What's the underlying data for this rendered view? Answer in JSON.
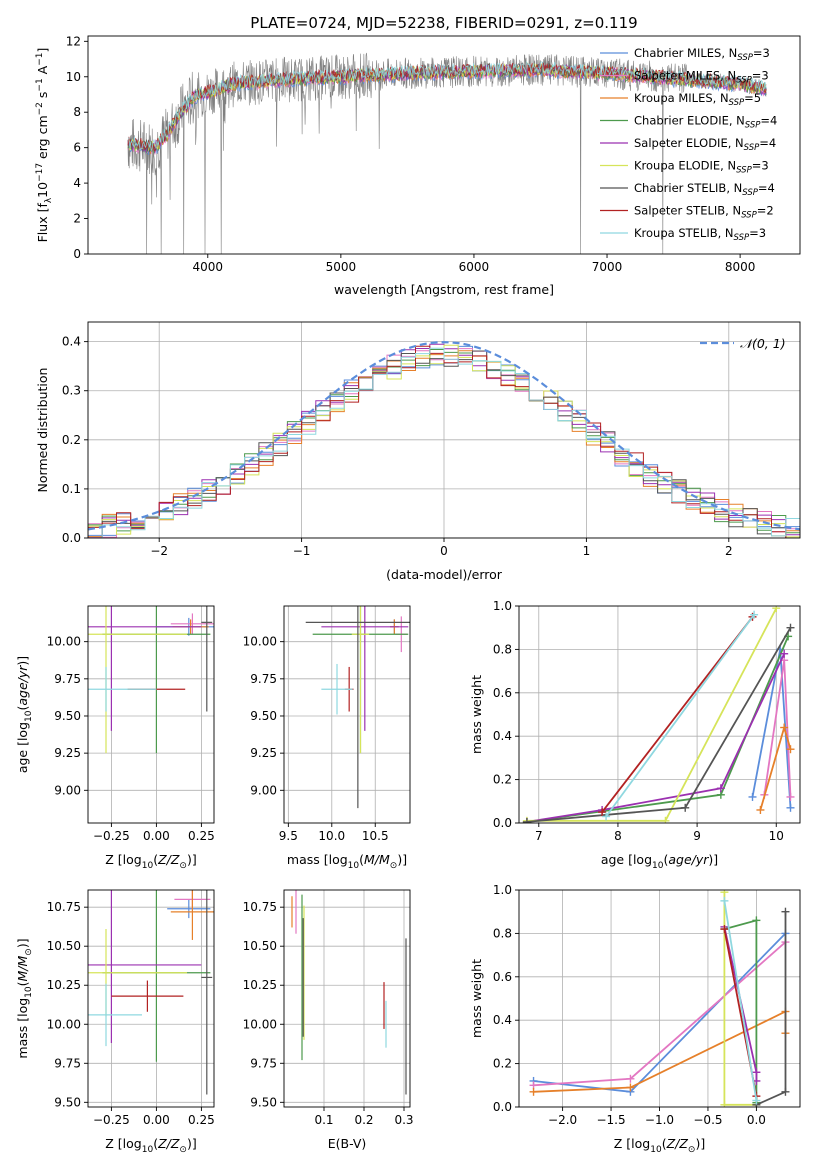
{
  "figure_title": "PLATE=0724, MJD=52238, FIBERID=0291, z=0.119",
  "legend": [
    {
      "label": "Chabrier MILES, N$_{SSP}$=3",
      "main": "Chabrier MILES, N",
      "sub": "SSP",
      "tail": "=3",
      "color": "#5b8ddb"
    },
    {
      "label": "Salpeter MILES, N$_{SSP}$=3",
      "main": "Salpeter MILES, N",
      "sub": "SSP",
      "tail": "=3",
      "color": "#e377c2"
    },
    {
      "label": "Kroupa MILES, N$_{SSP}$=5",
      "main": "Kroupa MILES, N",
      "sub": "SSP",
      "tail": "=5",
      "color": "#e6802a"
    },
    {
      "label": "Chabrier ELODIE, N$_{SSP}$=4",
      "main": "Chabrier ELODIE, N",
      "sub": "SSP",
      "tail": "=4",
      "color": "#4d9a4d"
    },
    {
      "label": "Salpeter ELODIE, N$_{SSP}$=4",
      "main": "Salpeter ELODIE, N",
      "sub": "SSP",
      "tail": "=4",
      "color": "#9b30b0"
    },
    {
      "label": "Kroupa ELODIE, N$_{SSP}$=3",
      "main": "Kroupa ELODIE, N",
      "sub": "SSP",
      "tail": "=3",
      "color": "#d6e45a"
    },
    {
      "label": "Chabrier STELIB, N$_{SSP}$=4",
      "main": "Chabrier STELIB, N",
      "sub": "SSP",
      "tail": "=4",
      "color": "#555555"
    },
    {
      "label": "Salpeter STELIB, N$_{SSP}$=2",
      "main": "Salpeter STELIB, N",
      "sub": "SSP",
      "tail": "=2",
      "color": "#b22222"
    },
    {
      "label": "Kroupa STELIB, N$_{SSP}$=3",
      "main": "Kroupa STELIB, N",
      "sub": "SSP",
      "tail": "=3",
      "color": "#8fd8e0"
    }
  ],
  "chart_data": [
    {
      "id": "spectrum",
      "type": "line",
      "xlabel": "wavelength [Angstrom, rest frame]",
      "ylabel": "Flux [f$_\\lambda$10$^{-17}$ erg cm$^{-2}$ s$^{-1}$ A$^{-1}$]",
      "ylabel_main": "Flux [f",
      "xlim": [
        3100,
        8450
      ],
      "ylim": [
        0,
        12.3
      ],
      "xticks": [
        4000,
        5000,
        6000,
        7000,
        8000
      ],
      "yticks": [
        0,
        2,
        4,
        6,
        8,
        10,
        12
      ],
      "grid": false,
      "legend_position": "right",
      "data_color": "#808080",
      "continuum": {
        "x": [
          3400,
          3600,
          3700,
          3800,
          3900,
          4000,
          4200,
          4500,
          5000,
          5500,
          6000,
          6500,
          7000,
          7500,
          8000,
          8200
        ],
        "y": [
          6.2,
          6.0,
          6.8,
          8.0,
          8.9,
          9.1,
          9.6,
          9.8,
          10.0,
          10.2,
          10.3,
          10.4,
          10.2,
          9.9,
          9.6,
          9.3
        ]
      },
      "observed_dropouts": [
        3540,
        3650,
        3820,
        3980,
        4100,
        6800,
        7420
      ]
    },
    {
      "id": "residuals",
      "type": "histogram",
      "xlabel": "(data-model)/error",
      "ylabel": "Normed distribution",
      "xlim": [
        -2.5,
        2.5
      ],
      "ylim": [
        0,
        0.44
      ],
      "xticks": [
        -2,
        -1,
        0,
        1,
        2
      ],
      "yticks": [
        0.0,
        0.1,
        0.2,
        0.3,
        0.4
      ],
      "grid": true,
      "legend": [
        {
          "label": "$\\mathcal{N}(0,1)$",
          "display": "𝒩(0, 1)",
          "color": "#5b8ddb",
          "style": "dashed"
        }
      ],
      "legend_position": "top-right",
      "bin_width": 0.1
    },
    {
      "id": "age-vs-Z",
      "type": "errorbar",
      "xlabel": "Z [log$_{10}$(Z/Z$_\\odot$)]",
      "ylabel": "age  [log$_{10}$(age/yr)]",
      "xlim": [
        -0.38,
        0.32
      ],
      "ylim": [
        8.78,
        10.24
      ],
      "xticks": [
        -0.25,
        0.0,
        0.25
      ],
      "xticklabels": [
        "−0.25",
        "0.00",
        "0.25"
      ],
      "yticks": [
        9.0,
        9.25,
        9.5,
        9.75,
        10.0
      ],
      "grid": true,
      "points": [
        {
          "x": 0.18,
          "y": 10.1,
          "xerr": 0.18,
          "yerr": 0.06,
          "color": "#5b8ddb"
        },
        {
          "x": 0.2,
          "y": 10.12,
          "xerr": 0.12,
          "yerr": 0.07,
          "color": "#e377c2"
        },
        {
          "x": 0.19,
          "y": 10.1,
          "xerr": 0.1,
          "yerr": 0.05,
          "color": "#e6802a"
        },
        {
          "x": 0.0,
          "y": 10.05,
          "xerr": 0.3,
          "yerr": 0.8,
          "color": "#4d9a4d"
        },
        {
          "x": -0.25,
          "y": 10.1,
          "xerr": 0.5,
          "yerr": 0.7,
          "color": "#9b30b0"
        },
        {
          "x": -0.28,
          "y": 10.05,
          "xerr": 0.45,
          "yerr": 0.8,
          "color": "#d6e45a"
        },
        {
          "x": 0.28,
          "y": 10.13,
          "xerr": 0.03,
          "yerr": 0.6,
          "color": "#555555"
        },
        {
          "x": 0.0,
          "y": 9.68,
          "xerr": 0.16,
          "yerr": 0.0,
          "color": "#b22222"
        },
        {
          "x": -0.28,
          "y": 9.68,
          "xerr": 0.28,
          "yerr": 0.15,
          "color": "#8fd8e0"
        }
      ]
    },
    {
      "id": "age-vs-mass",
      "type": "errorbar",
      "xlabel": "mass [log$_{10}$(M/M$_\\odot$)]",
      "ylabel": "",
      "xlim": [
        9.45,
        10.9
      ],
      "ylim": [
        8.78,
        10.24
      ],
      "xticks": [
        9.5,
        10.0,
        10.5
      ],
      "yticks": [
        9.0,
        9.25,
        9.5,
        9.75,
        10.0
      ],
      "grid": true,
      "points": [
        {
          "x": 10.72,
          "y": 10.1,
          "xerr": 0.05,
          "yerr": 0.05,
          "color": "#5b8ddb"
        },
        {
          "x": 10.8,
          "y": 10.05,
          "xerr": 0.07,
          "yerr": 0.12,
          "color": "#e377c2"
        },
        {
          "x": 10.72,
          "y": 10.1,
          "xerr": 0.05,
          "yerr": 0.05,
          "color": "#e6802a"
        },
        {
          "x": 10.33,
          "y": 10.05,
          "xerr": 0.55,
          "yerr": 0.8,
          "color": "#4d9a4d"
        },
        {
          "x": 10.38,
          "y": 10.1,
          "xerr": 0.5,
          "yerr": 0.7,
          "color": "#9b30b0"
        },
        {
          "x": 10.33,
          "y": 10.05,
          "xerr": 0.1,
          "yerr": 0.8,
          "color": "#d6e45a"
        },
        {
          "x": 10.3,
          "y": 10.13,
          "xerr": 0.6,
          "yerr": 1.25,
          "color": "#555555"
        },
        {
          "x": 10.2,
          "y": 9.68,
          "xerr": 0.05,
          "yerr": 0.15,
          "color": "#b22222"
        },
        {
          "x": 10.06,
          "y": 9.68,
          "xerr": 0.18,
          "yerr": 0.17,
          "color": "#8fd8e0"
        }
      ]
    },
    {
      "id": "massweight-vs-age",
      "type": "line",
      "xlabel": "age  [log$_{10}$(age/yr)]",
      "ylabel": "mass weight",
      "xlim": [
        6.75,
        10.3
      ],
      "ylim": [
        0,
        1
      ],
      "xticks": [
        7,
        8,
        9,
        10
      ],
      "yticks": [
        0.0,
        0.2,
        0.4,
        0.6,
        0.8,
        1.0
      ],
      "grid": true,
      "series": [
        {
          "color": "#5b8ddb",
          "x": [
            9.7,
            10.05,
            10.18
          ],
          "y": [
            0.12,
            0.8,
            0.07
          ]
        },
        {
          "color": "#e377c2",
          "x": [
            9.85,
            10.1,
            10.18
          ],
          "y": [
            0.13,
            0.75,
            0.12
          ]
        },
        {
          "color": "#e6802a",
          "x": [
            9.8,
            10.1,
            10.18
          ],
          "y": [
            0.06,
            0.44,
            0.34
          ]
        },
        {
          "color": "#4d9a4d",
          "x": [
            6.85,
            9.3,
            10.15
          ],
          "y": [
            0.005,
            0.13,
            0.86
          ]
        },
        {
          "color": "#9b30b0",
          "x": [
            6.85,
            7.8,
            9.3,
            10.1
          ],
          "y": [
            0.005,
            0.06,
            0.16,
            0.78
          ]
        },
        {
          "color": "#d6e45a",
          "x": [
            6.85,
            8.6,
            10.0
          ],
          "y": [
            0.01,
            0.01,
            0.99
          ]
        },
        {
          "color": "#555555",
          "x": [
            6.85,
            8.85,
            10.18
          ],
          "y": [
            0.005,
            0.07,
            0.9
          ]
        },
        {
          "color": "#b22222",
          "x": [
            7.8,
            9.7
          ],
          "y": [
            0.05,
            0.95
          ]
        },
        {
          "color": "#8fd8e0",
          "x": [
            7.85,
            9.72
          ],
          "y": [
            0.03,
            0.96
          ]
        }
      ]
    },
    {
      "id": "mass-vs-Z",
      "type": "errorbar",
      "xlabel": "Z [log$_{10}$(Z/Z$_\\odot$)]",
      "ylabel": "mass [log$_{10}$(M/M$_\\odot$)]",
      "xlim": [
        -0.38,
        0.32
      ],
      "ylim": [
        9.47,
        10.86
      ],
      "xticks": [
        -0.25,
        0.0,
        0.25
      ],
      "xticklabels": [
        "−0.25",
        "0.00",
        "0.25"
      ],
      "yticks": [
        9.5,
        9.75,
        10.0,
        10.25,
        10.5,
        10.75
      ],
      "grid": true,
      "points": [
        {
          "x": 0.18,
          "y": 10.74,
          "xerr": 0.12,
          "yerr": 0.06,
          "color": "#5b8ddb"
        },
        {
          "x": 0.2,
          "y": 10.8,
          "xerr": 0.1,
          "yerr": 0.06,
          "color": "#e377c2"
        },
        {
          "x": 0.2,
          "y": 10.72,
          "xerr": 0.12,
          "yerr": 0.18,
          "color": "#e6802a"
        },
        {
          "x": 0.0,
          "y": 10.33,
          "xerr": 0.3,
          "yerr": 0.57,
          "color": "#4d9a4d"
        },
        {
          "x": -0.25,
          "y": 10.38,
          "xerr": 0.5,
          "yerr": 0.5,
          "color": "#9b30b0"
        },
        {
          "x": -0.28,
          "y": 10.33,
          "xerr": 0.45,
          "yerr": 0.28,
          "color": "#d6e45a"
        },
        {
          "x": 0.28,
          "y": 10.3,
          "xerr": 0.03,
          "yerr": 0.75,
          "color": "#555555"
        },
        {
          "x": -0.05,
          "y": 10.18,
          "xerr": 0.2,
          "yerr": 0.1,
          "color": "#b22222"
        },
        {
          "x": -0.28,
          "y": 10.06,
          "xerr": 0.2,
          "yerr": 0.2,
          "color": "#8fd8e0"
        }
      ]
    },
    {
      "id": "mass-vs-EBV",
      "type": "errorbar",
      "xlabel": "E(B-V)",
      "ylabel": "",
      "xlim": [
        0.0,
        0.315
      ],
      "ylim": [
        9.47,
        10.86
      ],
      "xticks": [
        0.1,
        0.2,
        0.3
      ],
      "yticks": [
        9.5,
        9.75,
        10.0,
        10.25,
        10.5,
        10.75
      ],
      "grid": true,
      "points": [
        {
          "x": 0.02,
          "y": 10.72,
          "xerr": 0.0,
          "yerr": 0.1,
          "color": "#e6802a"
        },
        {
          "x": 0.03,
          "y": 10.72,
          "xerr": 0.0,
          "yerr": 0.14,
          "color": "#e377c2"
        },
        {
          "x": 0.045,
          "y": 10.3,
          "xerr": 0.0,
          "yerr": 0.53,
          "color": "#4d9a4d"
        },
        {
          "x": 0.05,
          "y": 10.33,
          "xerr": 0.0,
          "yerr": 0.43,
          "color": "#d6e45a"
        },
        {
          "x": 0.048,
          "y": 10.3,
          "xerr": 0.0,
          "yerr": 0.38,
          "color": "#555555"
        },
        {
          "x": 0.25,
          "y": 10.12,
          "xerr": 0.0,
          "yerr": 0.15,
          "color": "#b22222"
        },
        {
          "x": 0.255,
          "y": 10.0,
          "xerr": 0.0,
          "yerr": 0.15,
          "color": "#8fd8e0"
        },
        {
          "x": 0.305,
          "y": 10.05,
          "xerr": 0.0,
          "yerr": 0.5,
          "color": "#555555"
        }
      ]
    },
    {
      "id": "massweight-vs-Z",
      "type": "line",
      "xlabel": "Z [log$_{10}$(Z/Z$_\\odot$)]",
      "ylabel": "mass weight",
      "xlim": [
        -2.45,
        0.45
      ],
      "ylim": [
        0,
        1
      ],
      "xticks": [
        -2.0,
        -1.5,
        -1.0,
        -0.5,
        0.0
      ],
      "xticklabels": [
        "−2.0",
        "−1.5",
        "−1.0",
        "−0.5",
        "0.0"
      ],
      "yticks": [
        0.0,
        0.2,
        0.4,
        0.6,
        0.8,
        1.0
      ],
      "grid": true,
      "series": [
        {
          "color": "#5b8ddb",
          "x": [
            -2.3,
            -1.3,
            0.3
          ],
          "y": [
            0.12,
            0.07,
            0.8
          ]
        },
        {
          "color": "#e377c2",
          "x": [
            -2.3,
            -1.3,
            0.3
          ],
          "y": [
            0.1,
            0.13,
            0.76
          ]
        },
        {
          "color": "#e6802a",
          "x": [
            -2.3,
            -1.3,
            0.3,
            0.3
          ],
          "y": [
            0.07,
            0.09,
            0.44,
            0.34
          ]
        },
        {
          "color": "#4d9a4d",
          "x": [
            -0.33,
            0.0,
            0.0
          ],
          "y": [
            0.82,
            0.86,
            0.02
          ]
        },
        {
          "color": "#9b30b0",
          "x": [
            -0.33,
            0.0,
            0.0
          ],
          "y": [
            0.83,
            0.16,
            0.12
          ]
        },
        {
          "color": "#d6e45a",
          "x": [
            -0.33,
            -0.33,
            0.0
          ],
          "y": [
            0.99,
            0.01,
            0.01
          ]
        },
        {
          "color": "#555555",
          "x": [
            0.0,
            0.3,
            0.3
          ],
          "y": [
            0.01,
            0.07,
            0.9
          ]
        },
        {
          "color": "#b22222",
          "x": [
            -0.33,
            0.0
          ],
          "y": [
            0.82,
            0.05
          ]
        },
        {
          "color": "#8fd8e0",
          "x": [
            -0.33,
            0.0
          ],
          "y": [
            0.95,
            0.03
          ]
        }
      ]
    }
  ]
}
